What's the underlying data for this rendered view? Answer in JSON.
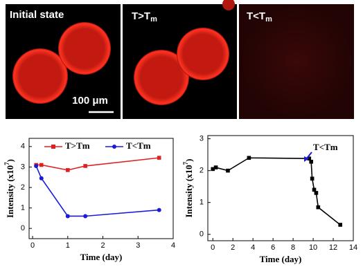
{
  "panels": [
    {
      "label": [
        "Initial state"
      ]
    },
    {
      "label": [
        "T>T",
        "m"
      ]
    },
    {
      "label": [
        "T<T",
        "m"
      ]
    }
  ],
  "scale_bar": "100 μm",
  "chart_data": [
    {
      "type": "line",
      "xlabel": "Time (day)",
      "ylabel": [
        "Intensity (x10",
        "7",
        ")"
      ],
      "xlim": [
        -0.1,
        4
      ],
      "xticks": [
        0,
        1,
        2,
        3,
        4
      ],
      "ylim": [
        -0.5,
        4.4
      ],
      "yticks": [
        0,
        1,
        2,
        3,
        4
      ],
      "legend": "top",
      "series": [
        {
          "name": "T>Tm",
          "color": "#e02020",
          "marker": "square",
          "x": [
            0.1,
            0.25,
            1,
            1.5,
            3.6
          ],
          "values": [
            3.1,
            3.1,
            2.85,
            3.05,
            3.45
          ]
        },
        {
          "name": "T<Tm",
          "color": "#1a1adc",
          "marker": "circle",
          "x": [
            0.1,
            0.25,
            1,
            1.5,
            3.6
          ],
          "values": [
            3.05,
            2.45,
            0.6,
            0.6,
            0.9
          ]
        }
      ]
    },
    {
      "type": "line",
      "xlabel": "Time (day)",
      "ylabel": [
        "Intensity (x10",
        "7",
        ")"
      ],
      "xlim": [
        -0.5,
        14
      ],
      "xticks": [
        0,
        2,
        4,
        6,
        8,
        10,
        12,
        14
      ],
      "ylim": [
        -0.2,
        3.1
      ],
      "yticks": [
        0,
        1,
        2,
        3
      ],
      "annotation": "T<Tm",
      "series": [
        {
          "color": "#000000",
          "marker": "square",
          "x": [
            0,
            0.3,
            1.5,
            3.6,
            9.6,
            9.8,
            9.9,
            10.1,
            10.3,
            10.5,
            12.7
          ],
          "values": [
            2.05,
            2.1,
            2.0,
            2.4,
            2.38,
            2.28,
            1.75,
            1.4,
            1.3,
            0.85,
            0.3
          ]
        }
      ]
    }
  ]
}
